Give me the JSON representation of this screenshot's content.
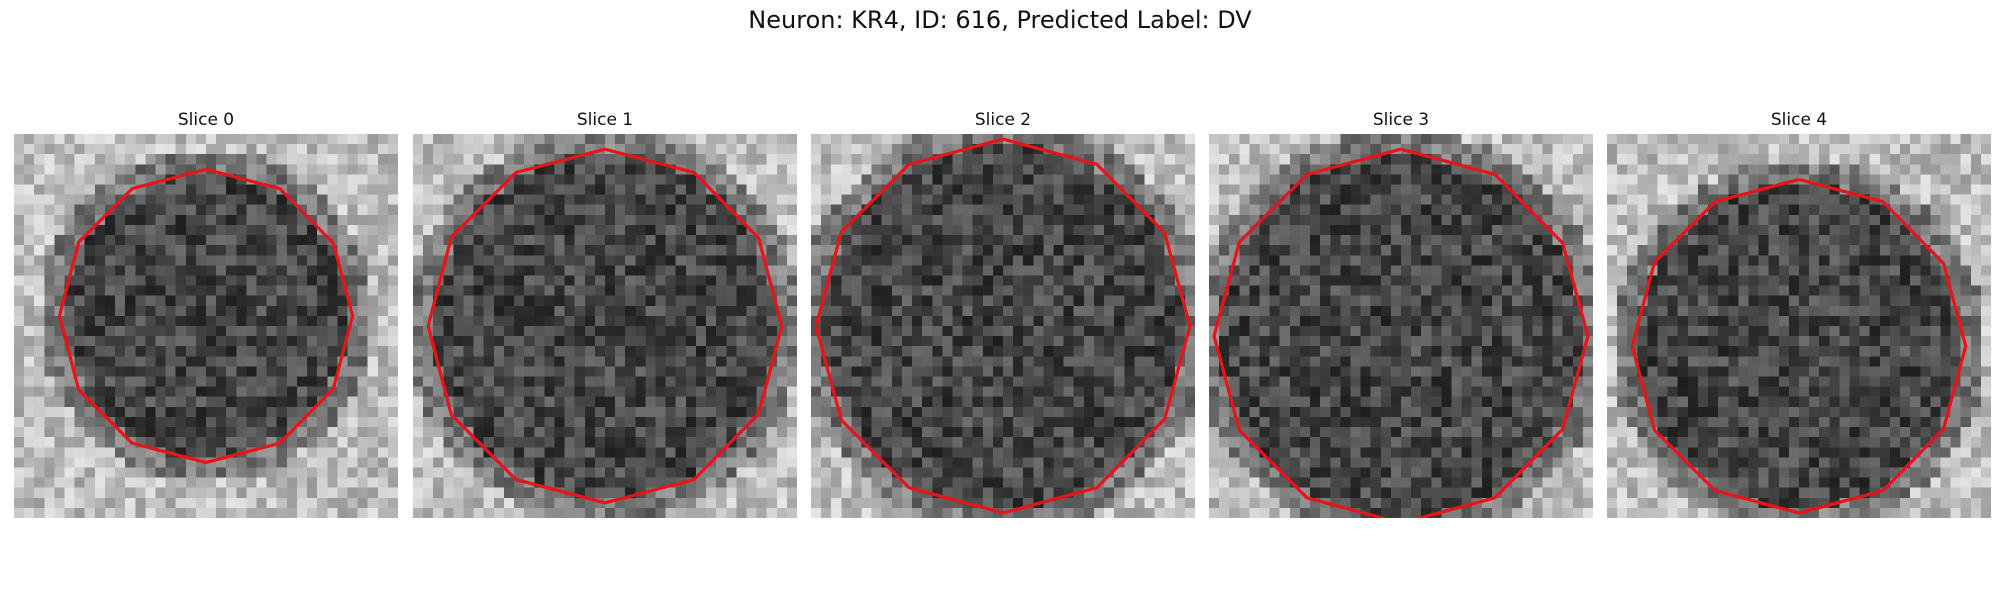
{
  "figure": {
    "title": "Neuron: KR4, ID: 616, Predicted Label: DV"
  },
  "panels": [
    {
      "label": "Slice 0",
      "cell_center": [
        19,
        18
      ],
      "cell_radius": 14
    },
    {
      "label": "Slice 1",
      "cell_center": [
        19,
        19
      ],
      "cell_radius": 17
    },
    {
      "label": "Slice 2",
      "cell_center": [
        19,
        19
      ],
      "cell_radius": 18
    },
    {
      "label": "Slice 3",
      "cell_center": [
        19,
        20
      ],
      "cell_radius": 18
    },
    {
      "label": "Slice 4",
      "cell_center": [
        19,
        21
      ],
      "cell_radius": 16
    }
  ],
  "colors": {
    "contour": "#e8141a",
    "background": "#ffffff"
  }
}
